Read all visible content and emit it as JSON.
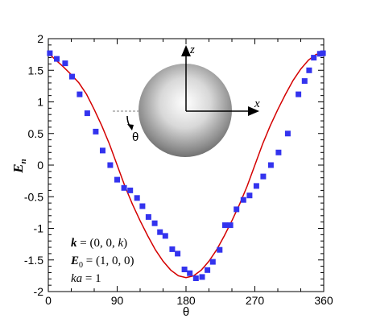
{
  "chart_data": {
    "type": "line",
    "xlabel": "θ",
    "ylabel": "E",
    "ylabel_sub": "n",
    "xlim": [
      0,
      360
    ],
    "ylim": [
      -2,
      2
    ],
    "x_ticks": [
      0,
      90,
      180,
      270,
      360
    ],
    "y_ticks": [
      -2,
      -1.5,
      -1,
      -0.5,
      0,
      0.5,
      1,
      1.5,
      2
    ],
    "grid": false,
    "series": [
      {
        "kind": "line",
        "color": "#d40000",
        "x": [
          0,
          10,
          20,
          30,
          40,
          50,
          60,
          70,
          80,
          90,
          100,
          110,
          120,
          130,
          140,
          150,
          160,
          170,
          180,
          190,
          200,
          210,
          220,
          230,
          240,
          250,
          260,
          270,
          280,
          290,
          300,
          310,
          320,
          330,
          340,
          350,
          360
        ],
        "y": [
          1.77,
          1.66,
          1.55,
          1.43,
          1.3,
          1.12,
          0.88,
          0.62,
          0.33,
          0.0,
          -0.33,
          -0.62,
          -0.88,
          -1.12,
          -1.34,
          -1.52,
          -1.66,
          -1.75,
          -1.78,
          -1.75,
          -1.66,
          -1.52,
          -1.34,
          -1.12,
          -0.88,
          -0.62,
          -0.33,
          0.0,
          0.33,
          0.62,
          0.88,
          1.12,
          1.34,
          1.52,
          1.66,
          1.75,
          1.77
        ]
      },
      {
        "kind": "markers",
        "color": "#3333ee",
        "x": [
          2,
          11,
          22,
          31,
          41,
          51,
          62,
          71,
          81,
          90,
          99,
          107,
          116,
          123,
          131,
          139,
          146,
          153,
          162,
          169,
          178,
          185,
          193,
          201,
          208,
          215,
          224,
          231,
          238,
          246,
          255,
          263,
          272,
          281,
          291,
          301,
          313,
          327,
          335,
          341,
          347,
          355,
          359
        ],
        "y": [
          1.77,
          1.68,
          1.61,
          1.4,
          1.12,
          0.82,
          0.53,
          0.23,
          0.0,
          -0.23,
          -0.36,
          -0.4,
          -0.52,
          -0.65,
          -0.82,
          -0.92,
          -1.06,
          -1.12,
          -1.33,
          -1.4,
          -1.65,
          -1.71,
          -1.79,
          -1.77,
          -1.66,
          -1.53,
          -1.34,
          -0.95,
          -0.95,
          -0.7,
          -0.55,
          -0.48,
          -0.33,
          -0.18,
          0.0,
          0.2,
          0.5,
          1.12,
          1.33,
          1.5,
          1.7,
          1.76,
          1.77
        ]
      }
    ],
    "annotations": {
      "line1": "k = (0, 0, k)",
      "line2": "E",
      "line2_sub": "0",
      "line2_rest": " = (1, 0, 0)",
      "line3": "ka = 1",
      "axis_z": "z",
      "axis_x": "x",
      "angle": "θ"
    }
  }
}
